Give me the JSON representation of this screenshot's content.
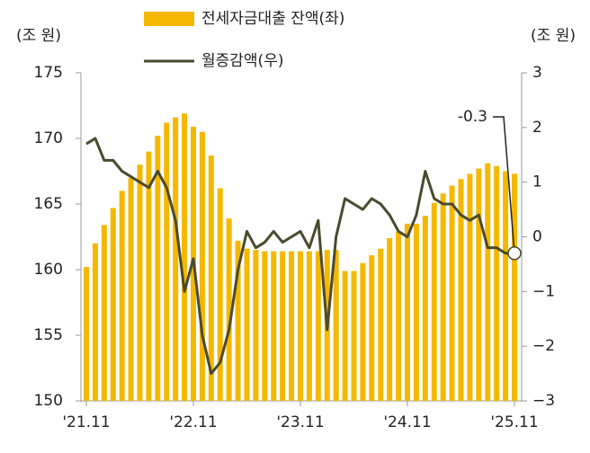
{
  "chart_data": {
    "type": "bar_line",
    "y_label": "(조 원)",
    "y2_label": "(조 원)",
    "categories": [
      "'21.11",
      null,
      null,
      null,
      null,
      null,
      null,
      null,
      null,
      null,
      null,
      null,
      "'22.11",
      null,
      null,
      null,
      null,
      null,
      null,
      null,
      null,
      null,
      null,
      null,
      "'23.11",
      null,
      null,
      null,
      null,
      null,
      null,
      null,
      null,
      null,
      null,
      null,
      "'24.11",
      null,
      null,
      null,
      null,
      null,
      null,
      null,
      null,
      null,
      null,
      null,
      "'25.11"
    ],
    "series": [
      {
        "name": "전세자금대출 잔액(좌)",
        "type": "bar",
        "color": "#f5b800",
        "values": [
          160.2,
          162.0,
          163.4,
          164.7,
          166.0,
          167.0,
          168.0,
          169.0,
          170.2,
          171.2,
          171.6,
          171.9,
          170.9,
          170.5,
          168.7,
          166.2,
          163.9,
          162.2,
          161.6,
          161.5,
          161.4,
          161.4,
          161.4,
          161.4,
          161.4,
          161.4,
          161.4,
          161.5,
          161.5,
          159.9,
          159.9,
          160.5,
          161.1,
          161.6,
          162.4,
          162.9,
          163.5,
          163.5,
          164.1,
          165.1,
          165.8,
          166.4,
          166.9,
          167.3,
          167.7,
          168.1,
          167.9,
          167.5,
          167.3
        ]
      },
      {
        "name": "월증감액(우)",
        "type": "line",
        "axis": "y2",
        "color": "#4a4a2e",
        "values": [
          1.7,
          1.8,
          1.4,
          1.4,
          1.2,
          1.1,
          1.0,
          0.9,
          1.2,
          0.9,
          0.3,
          -1.0,
          -0.4,
          -1.8,
          -2.5,
          -2.3,
          -1.7,
          -0.6,
          0.1,
          -0.2,
          -0.1,
          0.1,
          -0.1,
          0.0,
          0.1,
          -0.2,
          0.3,
          -1.7,
          0.0,
          0.7,
          0.6,
          0.5,
          0.7,
          0.6,
          0.4,
          0.1,
          0.0,
          0.4,
          1.2,
          0.7,
          0.6,
          0.6,
          0.4,
          0.3,
          0.4,
          -0.2,
          -0.2,
          -0.3,
          -0.3
        ]
      }
    ],
    "ylim": [
      150,
      175
    ],
    "yticks": [
      150,
      155,
      160,
      165,
      170,
      175
    ],
    "y2lim": [
      -3,
      3
    ],
    "y2ticks": [
      {
        "value": -3,
        "label": "−3"
      },
      {
        "value": -2,
        "label": "−2"
      },
      {
        "value": -1,
        "label": "−1"
      },
      0,
      1,
      2,
      3
    ],
    "annotation": "-0.3"
  }
}
